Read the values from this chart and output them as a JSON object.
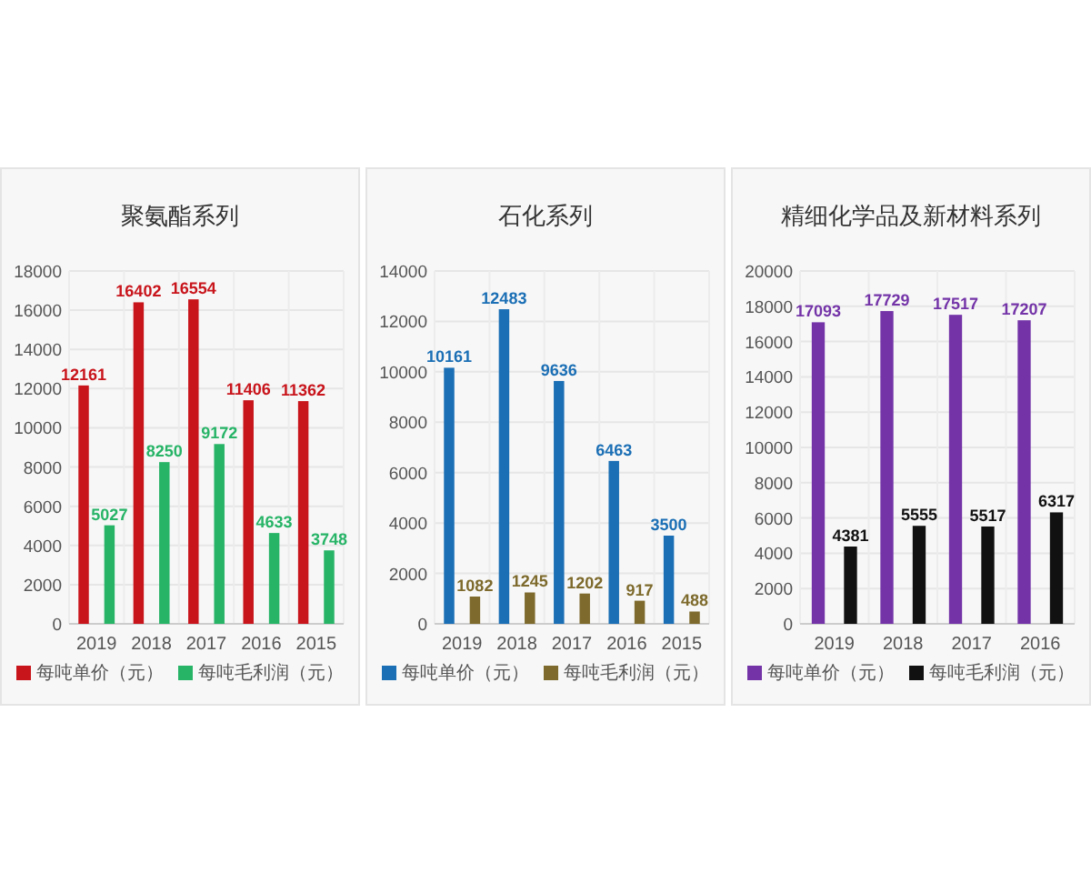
{
  "chart_data": [
    {
      "type": "bar",
      "title": "聚氨酯系列",
      "categories": [
        "2019",
        "2018",
        "2017",
        "2016",
        "2015"
      ],
      "series": [
        {
          "name": "每吨单价（元）",
          "color": "#c8141b",
          "values": [
            12161,
            16402,
            16554,
            11406,
            11362
          ]
        },
        {
          "name": "每吨毛利润（元）",
          "color": "#27b467",
          "values": [
            5027,
            8250,
            9172,
            4633,
            3748
          ]
        }
      ],
      "ylim": [
        0,
        18000
      ],
      "yticks": [
        0,
        2000,
        4000,
        6000,
        8000,
        10000,
        12000,
        14000,
        16000,
        18000
      ],
      "grid": true,
      "legend": "bottom",
      "data_labels": true
    },
    {
      "type": "bar",
      "title": "石化系列",
      "categories": [
        "2019",
        "2018",
        "2017",
        "2016",
        "2015"
      ],
      "series": [
        {
          "name": "每吨单价（元）",
          "color": "#1b6fb5",
          "values": [
            10161,
            12483,
            9636,
            6463,
            3500
          ]
        },
        {
          "name": "每吨毛利润（元）",
          "color": "#7d6a2c",
          "values": [
            1082,
            1245,
            1202,
            917,
            488
          ]
        }
      ],
      "ylim": [
        0,
        14000
      ],
      "yticks": [
        0,
        2000,
        4000,
        6000,
        8000,
        10000,
        12000,
        14000
      ],
      "grid": true,
      "legend": "bottom",
      "data_labels": true
    },
    {
      "type": "bar",
      "title": "精细化学品及新材料系列",
      "categories": [
        "2019",
        "2018",
        "2017",
        "2016"
      ],
      "series": [
        {
          "name": "每吨单价（元）",
          "color": "#7434a8",
          "values": [
            17093,
            17729,
            17517,
            17207
          ]
        },
        {
          "name": "每吨毛利润（元）",
          "color": "#111111",
          "values": [
            4381,
            5555,
            5517,
            6317
          ]
        }
      ],
      "ylim": [
        0,
        20000
      ],
      "yticks": [
        0,
        2000,
        4000,
        6000,
        8000,
        10000,
        12000,
        14000,
        16000,
        18000,
        20000
      ],
      "grid": true,
      "legend": "bottom",
      "data_labels": true
    }
  ]
}
